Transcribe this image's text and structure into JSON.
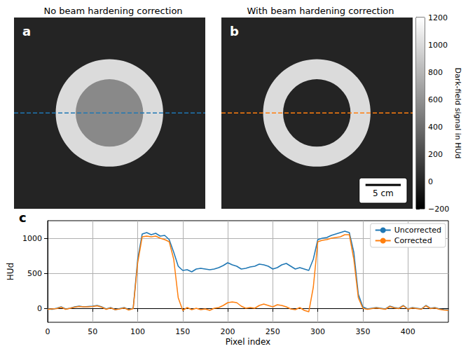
{
  "chart_data": [
    {
      "type": "image",
      "panel": "a",
      "title": "No beam hardening correction",
      "xlim": [
        0,
        445
      ],
      "ylim": [
        0,
        445
      ],
      "tick_labels": false,
      "background": 0,
      "discs": [
        {
          "center": [
            222,
            222
          ],
          "radius": 125,
          "value": 1000
        },
        {
          "center": [
            222,
            222
          ],
          "radius": 78.5,
          "value": 550
        }
      ],
      "profile_line": {
        "y": 222,
        "color": "#1f77b4",
        "line_style": "dashed"
      }
    },
    {
      "type": "image",
      "panel": "b",
      "title": "With beam hardening correction",
      "xlim": [
        0,
        445
      ],
      "ylim": [
        0,
        445
      ],
      "tick_labels": false,
      "background": 0,
      "discs": [
        {
          "center": [
            222,
            222
          ],
          "radius": 125,
          "value": 1000
        },
        {
          "center": [
            222,
            222
          ],
          "radius": 78.5,
          "value": 0
        }
      ],
      "profile_line": {
        "y": 222,
        "color": "#ff7f0e",
        "line_style": "dashed"
      },
      "scale_bar": {
        "label": "5 cm",
        "length": 82
      }
    },
    {
      "type": "colorbar",
      "title": "Dark-field signal in HUd",
      "ylim": [
        -200,
        1200
      ],
      "yticks": [
        {
          "value": -200,
          "label": "−200"
        },
        0,
        200,
        400,
        600,
        800,
        1000,
        1200
      ]
    },
    {
      "type": "line",
      "panel": "c",
      "x_label": "Pixel index",
      "y_label": "HUd",
      "xlim": [
        0,
        445
      ],
      "xticks": [
        0,
        50,
        100,
        150,
        200,
        250,
        300,
        350,
        400
      ],
      "ylim": [
        -200,
        1250
      ],
      "yticks": [
        0,
        500,
        1000
      ],
      "grid": true,
      "legend": "upper right",
      "x": [
        0,
        5,
        10,
        15,
        20,
        25,
        30,
        35,
        40,
        45,
        50,
        55,
        60,
        65,
        70,
        75,
        80,
        85,
        90,
        95,
        100,
        105,
        110,
        115,
        120,
        125,
        130,
        135,
        140,
        145,
        150,
        155,
        160,
        165,
        170,
        175,
        180,
        185,
        190,
        195,
        200,
        205,
        210,
        215,
        220,
        225,
        230,
        235,
        240,
        245,
        250,
        255,
        260,
        265,
        270,
        275,
        280,
        285,
        290,
        295,
        300,
        305,
        310,
        315,
        320,
        325,
        330,
        335,
        340,
        345,
        350,
        355,
        360,
        365,
        370,
        375,
        380,
        385,
        390,
        395,
        400,
        405,
        410,
        415,
        420,
        425,
        430,
        435,
        440,
        445
      ],
      "series": [
        {
          "name": "Uncorrected",
          "color": "#1f77b4",
          "values": [
            -10,
            -15,
            0,
            20,
            -10,
            0,
            20,
            30,
            20,
            25,
            30,
            40,
            20,
            -10,
            10,
            -20,
            -5,
            10,
            -20,
            0,
            700,
            1060,
            1080,
            1050,
            1070,
            1030,
            1040,
            980,
            800,
            600,
            540,
            550,
            520,
            560,
            570,
            560,
            550,
            560,
            580,
            610,
            650,
            620,
            600,
            560,
            570,
            590,
            600,
            630,
            620,
            600,
            560,
            580,
            620,
            640,
            600,
            560,
            580,
            560,
            540,
            700,
            980,
            1000,
            1010,
            1040,
            1060,
            1080,
            1100,
            1080,
            800,
            200,
            20,
            -10,
            0,
            10,
            0,
            -10,
            30,
            10,
            0,
            40,
            -10,
            10,
            0,
            -10,
            40,
            0,
            10,
            -10,
            -20,
            -25
          ]
        },
        {
          "name": "Corrected",
          "color": "#ff7f0e",
          "values": [
            -15,
            -10,
            -5,
            15,
            -15,
            0,
            15,
            25,
            20,
            20,
            25,
            35,
            15,
            -15,
            5,
            -20,
            -10,
            5,
            -25,
            -5,
            650,
            1020,
            1030,
            1020,
            1030,
            1000,
            980,
            950,
            700,
            150,
            -30,
            10,
            -20,
            0,
            -20,
            -10,
            -30,
            0,
            10,
            40,
            80,
            90,
            80,
            30,
            0,
            10,
            0,
            40,
            60,
            40,
            20,
            50,
            40,
            20,
            -10,
            -20,
            10,
            -30,
            -50,
            300,
            950,
            970,
            980,
            1000,
            1010,
            1020,
            1050,
            1050,
            700,
            150,
            0,
            -15,
            -5,
            5,
            -5,
            -15,
            25,
            5,
            -5,
            35,
            -15,
            5,
            -5,
            -15,
            35,
            -5,
            5,
            -15,
            -25,
            -30
          ]
        }
      ]
    }
  ]
}
